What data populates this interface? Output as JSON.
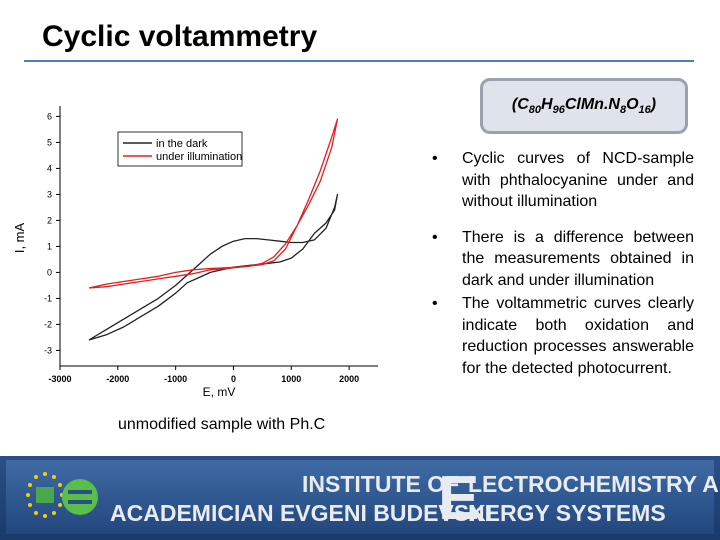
{
  "slide": {
    "title": "Cyclic voltammetry",
    "formula": {
      "prefix": "(C",
      "c": "80",
      "h_label": "H",
      "h": "96",
      "mid": "ClMn.N",
      "n": "8",
      "o_label": "O",
      "o": "16",
      "suffix": ")"
    },
    "bullets": [
      "Cyclic curves of NCD-sample with phthalocyanine under and without illumination",
      "There is a difference between the measurements obtained in dark and under illumination",
      "The voltammetric curves clearly indicate both oxidation and reduction processes answerable for the detected photocurrent."
    ],
    "caption": "unmodified sample with Ph.C",
    "banner": {
      "line1": "INSTITUTE OF",
      "line2": "ACADEMICIAN EVGENI BUDEVSKI",
      "big_letter": "E",
      "line3": "LECTROCHEMISTRY AND",
      "line4": "NERGY SYSTEMS"
    },
    "colors": {
      "dark_series": "#222222",
      "light_series": "#e02020",
      "banner": "#2a4f88",
      "title_rule": "#4a7fb8"
    }
  },
  "chart_data": {
    "type": "line",
    "xlabel": "E, mV",
    "ylabel": "I, mA",
    "xlim": [
      -3000,
      2500
    ],
    "ylim": [
      -3.6,
      6.4
    ],
    "xticks": [
      -3000,
      -2000,
      -1000,
      0,
      1000,
      2000
    ],
    "yticks": [
      -3,
      -2,
      -1,
      0,
      1,
      2,
      3,
      4,
      5,
      6
    ],
    "legend": "top-left",
    "series": [
      {
        "name": "in the dark",
        "color": "#222222",
        "x": [
          -2500,
          -2200,
          -1900,
          -1600,
          -1300,
          -1000,
          -800,
          -600,
          -400,
          -200,
          0,
          200,
          400,
          600,
          800,
          1000,
          1200,
          1400,
          1600,
          1750,
          1800,
          1750,
          1600,
          1400,
          1200,
          1000,
          800,
          600,
          400,
          200,
          0,
          -200,
          -400,
          -600,
          -800,
          -1000,
          -1300,
          -1600,
          -1900,
          -2200,
          -2500
        ],
        "y": [
          -2.6,
          -2.2,
          -1.8,
          -1.4,
          -1.0,
          -0.5,
          -0.1,
          0.3,
          0.7,
          1.0,
          1.2,
          1.3,
          1.3,
          1.25,
          1.2,
          1.15,
          1.15,
          1.25,
          1.7,
          2.5,
          3.0,
          2.4,
          1.9,
          1.5,
          0.9,
          0.55,
          0.4,
          0.35,
          0.3,
          0.25,
          0.2,
          0.1,
          0.0,
          -0.2,
          -0.4,
          -0.8,
          -1.3,
          -1.7,
          -2.1,
          -2.4,
          -2.6
        ]
      },
      {
        "name": "under illumination",
        "color": "#e02020",
        "x": [
          -2500,
          -2200,
          -1900,
          -1600,
          -1300,
          -1000,
          -700,
          -400,
          -100,
          200,
          500,
          700,
          900,
          1100,
          1300,
          1500,
          1700,
          1800,
          1700,
          1500,
          1300,
          1100,
          900,
          700,
          500,
          300,
          100,
          -100,
          -400,
          -700,
          -1000,
          -1300,
          -1600,
          -1900,
          -2200,
          -2500
        ],
        "y": [
          -0.6,
          -0.45,
          -0.35,
          -0.25,
          -0.15,
          0.0,
          0.1,
          0.15,
          0.18,
          0.22,
          0.3,
          0.45,
          0.9,
          1.8,
          2.8,
          3.9,
          5.2,
          5.9,
          4.8,
          3.5,
          2.6,
          1.8,
          1.1,
          0.6,
          0.35,
          0.25,
          0.2,
          0.15,
          0.1,
          -0.05,
          -0.15,
          -0.25,
          -0.35,
          -0.45,
          -0.55,
          -0.6
        ]
      }
    ]
  }
}
